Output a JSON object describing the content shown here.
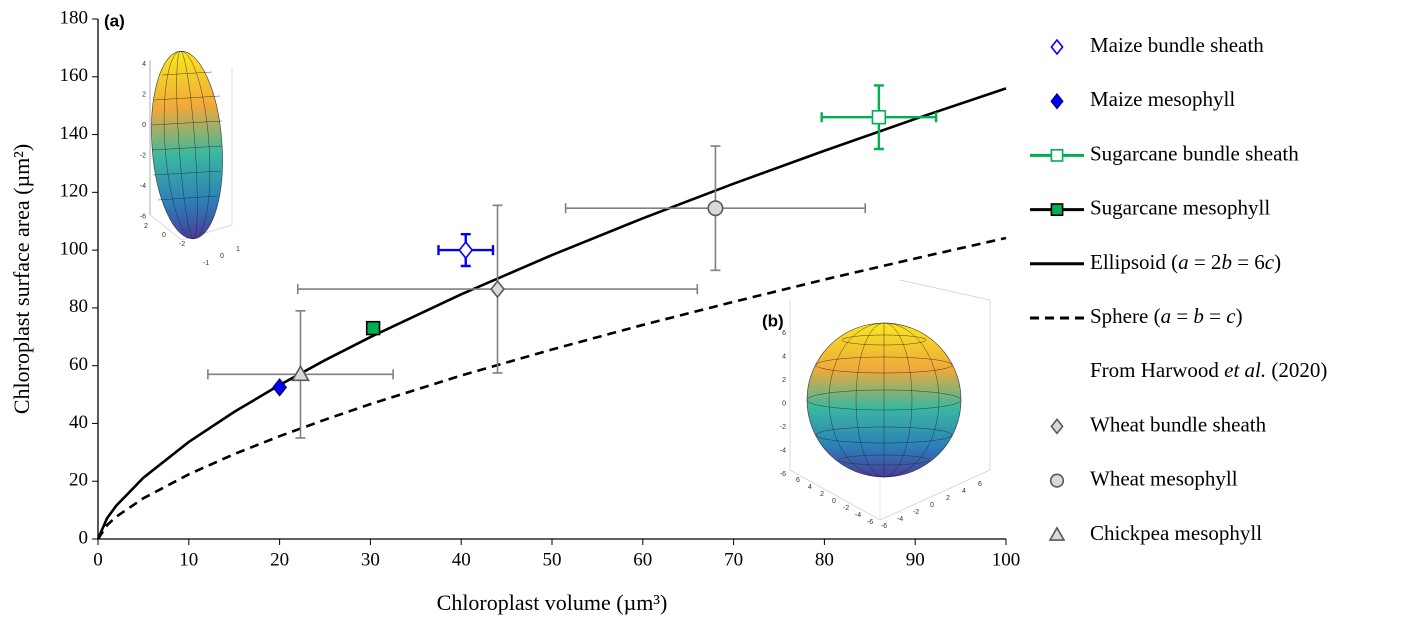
{
  "chart_data": {
    "type": "scatter",
    "x_label": "Chloroplast volume (µm³)",
    "y_label": "Chloroplast surface area (µm²)",
    "xlim": [
      0,
      100
    ],
    "xticks": [
      0,
      10,
      20,
      30,
      40,
      50,
      60,
      70,
      80,
      90,
      100
    ],
    "ylim": [
      0,
      180
    ],
    "yticks": [
      0,
      20,
      40,
      60,
      80,
      100,
      120,
      140,
      160,
      180
    ],
    "legend_note": "From Harwood et al. (2020)",
    "series": [
      {
        "name": "Maize bundle sheath",
        "marker": "diamond",
        "color": "#0000ff",
        "fill": "#ffffff",
        "x": [
          40.5
        ],
        "values": [
          100
        ],
        "xerr": [
          3
        ],
        "yerr": [
          5.5
        ]
      },
      {
        "name": "Maize mesophyll",
        "marker": "diamond",
        "color": "#00008b",
        "fill": "#0000ff",
        "x": [
          20
        ],
        "values": [
          52.5
        ]
      },
      {
        "name": "Sugarcane bundle sheath",
        "marker": "square",
        "color": "#00b050",
        "fill": "#ffffff",
        "legend_line": true,
        "x": [
          86
        ],
        "values": [
          146
        ],
        "xerr": [
          6.3
        ],
        "yerr": [
          11
        ]
      },
      {
        "name": "Sugarcane mesophyll",
        "marker": "square",
        "color": "#000000",
        "fill": "#00b050",
        "legend_line": true,
        "x": [
          30.3
        ],
        "values": [
          73
        ]
      },
      {
        "name": "Ellipsoid (a = 2b = 6c)",
        "marker": "line",
        "color": "#000000",
        "dashed": false,
        "x": [
          0,
          1,
          2,
          5,
          10,
          15,
          20,
          25,
          30,
          40,
          50,
          60,
          70,
          80,
          90,
          100
        ],
        "values": [
          0,
          7.2,
          11.5,
          21.2,
          33.6,
          44.0,
          53.3,
          61.9,
          69.9,
          84.7,
          98.3,
          111.0,
          123.0,
          134.4,
          145.4,
          156.0
        ]
      },
      {
        "name": "Sphere (a = b = c)",
        "marker": "line",
        "color": "#000000",
        "dashed": true,
        "x": [
          0,
          1,
          2,
          5,
          10,
          15,
          20,
          25,
          30,
          40,
          50,
          60,
          70,
          80,
          90,
          100
        ],
        "values": [
          0,
          4.8,
          7.7,
          14.1,
          22.4,
          29.4,
          35.6,
          41.3,
          46.7,
          56.6,
          65.6,
          74.1,
          82.1,
          89.8,
          97.1,
          104.2
        ]
      },
      {
        "name": "Wheat bundle sheath",
        "marker": "diamond",
        "color": "#595959",
        "fill": "#d9d9d9",
        "errcolor": "#808080",
        "x": [
          44
        ],
        "values": [
          86.5
        ],
        "xerr": [
          22
        ],
        "yerr": [
          29
        ]
      },
      {
        "name": "Wheat mesophyll",
        "marker": "circle",
        "color": "#595959",
        "fill": "#d9d9d9",
        "errcolor": "#808080",
        "x": [
          68
        ],
        "values": [
          114.5
        ],
        "xerr": [
          16.5
        ],
        "yerr": [
          21.5
        ]
      },
      {
        "name": "Chickpea mesophyll",
        "marker": "triangle",
        "color": "#595959",
        "fill": "#d9d9d9",
        "errcolor": "#808080",
        "x": [
          22.3
        ],
        "values": [
          57
        ],
        "xerr": [
          10.2
        ],
        "yerr": [
          22
        ]
      }
    ],
    "insets": [
      {
        "label": "(a)",
        "z_ticks": [
          4,
          2,
          0,
          -2,
          -4,
          -6
        ],
        "x_ticks": [
          2,
          0,
          -2
        ],
        "y_ticks": [
          -1,
          0,
          1
        ]
      },
      {
        "label": "(b)",
        "z_ticks": [
          6,
          4,
          2,
          0,
          -2,
          -4,
          -6
        ],
        "x_ticks": [
          6,
          4,
          2,
          0,
          -2,
          -4,
          -6
        ],
        "y_ticks": [
          -6,
          -4,
          -2,
          0,
          2,
          4,
          6
        ]
      }
    ]
  }
}
